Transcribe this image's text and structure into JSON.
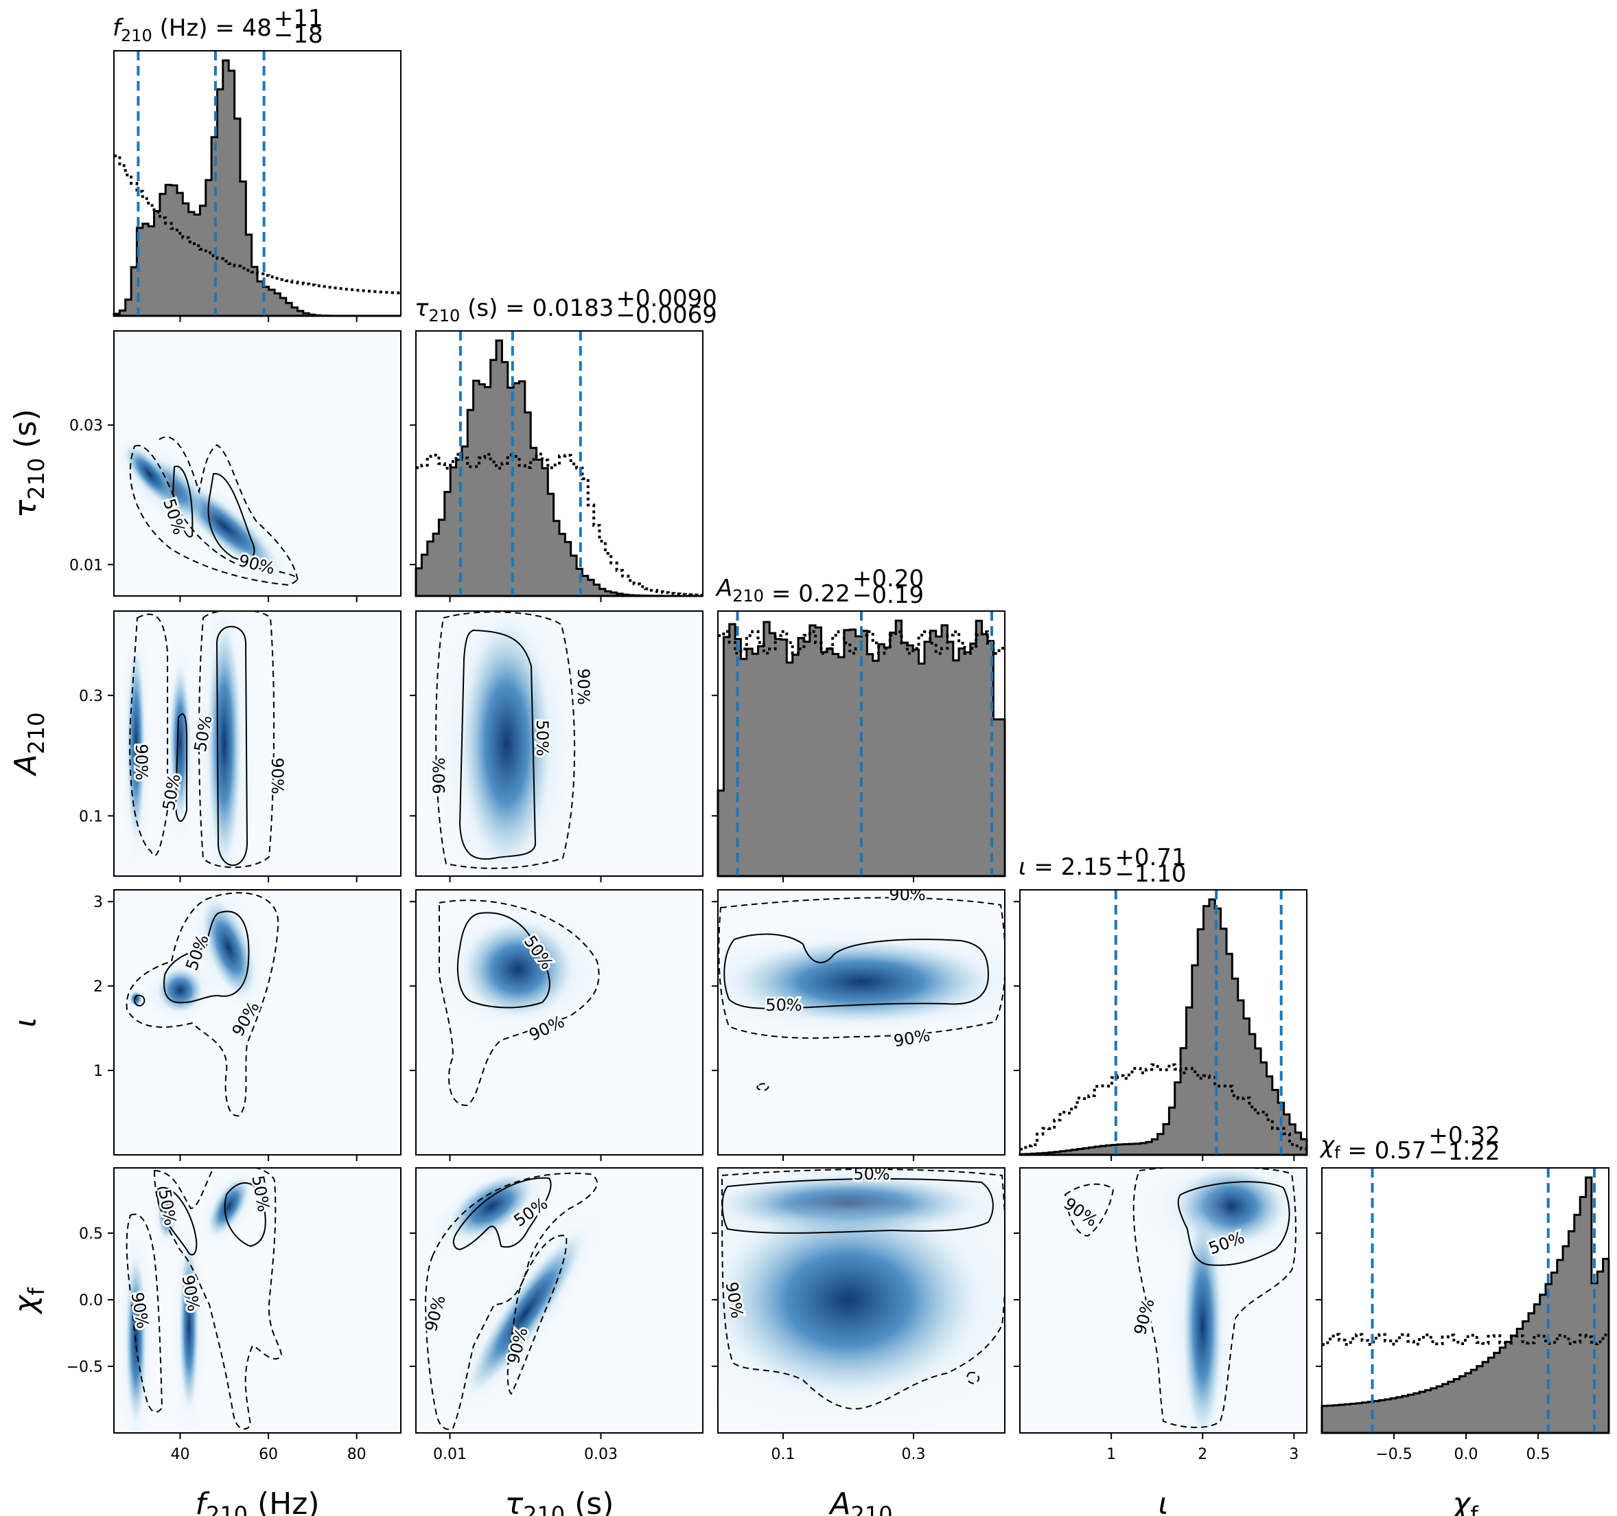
{
  "chart_data": {
    "type": "corner",
    "parameters": [
      {
        "key": "f",
        "label_main": "f",
        "label_sub": "210",
        "label_unit": " (Hz)",
        "title_value": "48",
        "title_plus": "+11",
        "title_minus": "−18",
        "range": [
          25,
          90
        ],
        "ticks": [
          40,
          60,
          80
        ],
        "tick_labels": [
          "40",
          "60",
          "80"
        ],
        "median": 48,
        "lower": 30.5,
        "upper": 59,
        "prior_shape": "decaying"
      },
      {
        "key": "tau",
        "label_main": "τ",
        "label_sub": "210",
        "label_unit": " (s)",
        "title_value": "0.0183",
        "title_plus": "+0.0090",
        "title_minus": "−0.0069",
        "range": [
          0.0055,
          0.0435
        ],
        "ticks": [
          0.01,
          0.03
        ],
        "tick_labels": [
          "0.01",
          "0.03"
        ],
        "median": 0.0183,
        "lower": 0.0114,
        "upper": 0.0273,
        "prior_shape": "flat_to_0.027"
      },
      {
        "key": "A",
        "label_main": "A",
        "label_sub": "210",
        "label_unit": "",
        "title_value": "0.22",
        "title_plus": "+0.20",
        "title_minus": "−0.19",
        "range": [
          0.0,
          0.44
        ],
        "ticks": [
          0.1,
          0.3
        ],
        "tick_labels": [
          "0.1",
          "0.3"
        ],
        "median": 0.22,
        "lower": 0.03,
        "upper": 0.42,
        "prior_shape": "flat"
      },
      {
        "key": "iota",
        "label_main": "ι",
        "label_sub": "",
        "label_unit": "",
        "title_value": "2.15",
        "title_plus": "+0.71",
        "title_minus": "−1.10",
        "range": [
          0.0,
          3.14
        ],
        "ticks": [
          1,
          2,
          3
        ],
        "tick_labels": [
          "1",
          "2",
          "3"
        ],
        "median": 2.15,
        "lower": 1.05,
        "upper": 2.86,
        "prior_shape": "sine"
      },
      {
        "key": "chi",
        "label_main": "χ",
        "label_sub": "f",
        "label_unit": "",
        "title_value": "0.57",
        "title_plus": "+0.32",
        "title_minus": "−1.22",
        "range": [
          -1.0,
          0.99
        ],
        "ticks": [
          -0.5,
          0.0,
          0.5
        ],
        "tick_labels": [
          "−0.5",
          "0.0",
          "0.5"
        ],
        "median": 0.57,
        "lower": -0.65,
        "upper": 0.89,
        "prior_shape": "flat"
      }
    ],
    "contour_labels": [
      "50%",
      "90%"
    ],
    "histogram_fill": "#808080",
    "histogram_edge": "#000000",
    "quantile_line_color": "#1f77b4",
    "density_colormap": [
      "#f7fbff",
      "#c6dbef",
      "#6baed6",
      "#2171b5",
      "#08306b"
    ],
    "series": [
      {
        "style": "filled-step",
        "role": "posterior"
      },
      {
        "style": "dotted-step",
        "role": "prior"
      }
    ]
  }
}
